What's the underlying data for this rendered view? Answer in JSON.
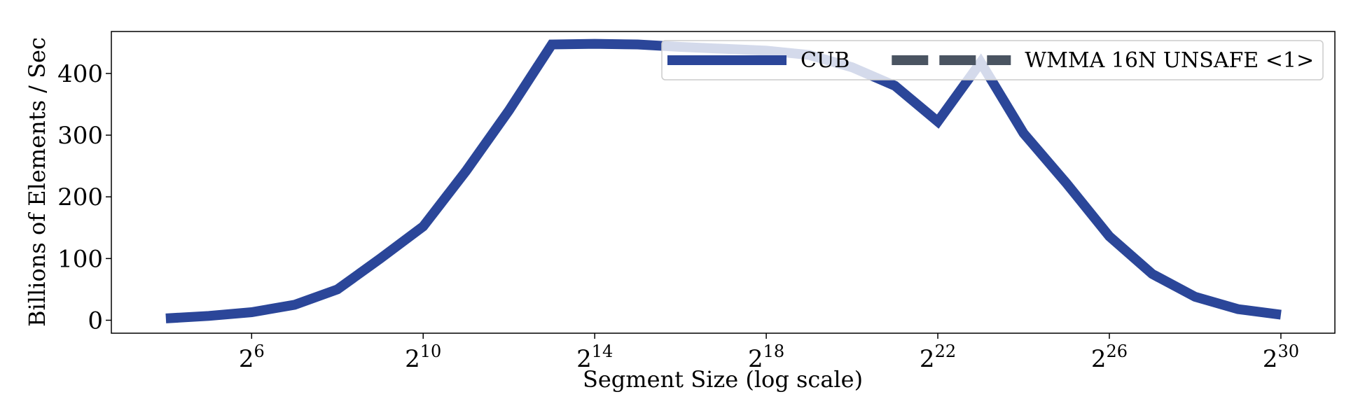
{
  "chart_data": {
    "type": "line",
    "xlabel": "Segment Size (log scale)",
    "ylabel": "Billions of Elements / Sec",
    "x": [
      16,
      32,
      64,
      128,
      256,
      512,
      1024,
      2048,
      4096,
      8192,
      16384,
      32768,
      65536,
      131072,
      262144,
      524288,
      1048576,
      2097152,
      4194304,
      8388608,
      16777216,
      33554432,
      67108864,
      134217728,
      268435456,
      536870912,
      1073741824
    ],
    "series": [
      {
        "name": "CUB",
        "color": "#2b4699",
        "dash": false,
        "values": [
          3,
          7,
          13,
          25,
          50,
          100,
          152,
          242,
          340,
          447,
          448,
          447,
          443,
          440,
          437,
          430,
          410,
          380,
          322,
          418,
          303,
          222,
          136,
          75,
          38,
          18,
          9
        ]
      },
      {
        "name": "WMMA 16N UNSAFE <1>",
        "color": "#4a5461",
        "dash": true,
        "values": [
          null,
          null,
          null,
          null,
          null,
          null,
          null,
          null,
          null,
          null,
          null,
          null,
          null,
          null,
          null,
          null,
          null,
          null,
          null,
          null,
          null,
          null,
          null,
          null,
          null,
          null,
          null
        ]
      }
    ],
    "xscale": "log2",
    "xlim": [
      6.63,
      2570000000
    ],
    "xticks": [
      {
        "value": 64,
        "label": "2^6"
      },
      {
        "value": 1024,
        "label": "2^10"
      },
      {
        "value": 16384,
        "label": "2^14"
      },
      {
        "value": 262144,
        "label": "2^18"
      },
      {
        "value": 4194304,
        "label": "2^22"
      },
      {
        "value": 67108864,
        "label": "2^26"
      },
      {
        "value": 1073741824,
        "label": "2^30"
      }
    ],
    "ylim": [
      -21,
      468
    ],
    "yticks": [
      0,
      100,
      200,
      300,
      400
    ],
    "legend": "upper right",
    "grid": false
  }
}
